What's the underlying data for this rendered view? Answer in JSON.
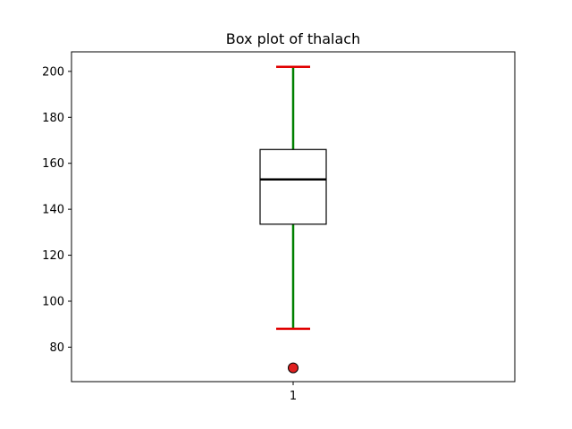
{
  "chart_data": {
    "type": "box",
    "title": "Box plot of thalach",
    "xlabel": "",
    "ylabel": "",
    "categories": [
      "1"
    ],
    "ylim": [
      65,
      208.5
    ],
    "yticks": [
      80,
      100,
      120,
      140,
      160,
      180,
      200
    ],
    "grid": false,
    "boxes": [
      {
        "category": "1",
        "whisker_low": 88,
        "q1": 133.5,
        "median": 153,
        "q3": 166,
        "whisker_high": 202,
        "outliers": [
          71
        ]
      }
    ],
    "colors": {
      "whisker": "#008000",
      "cap": "#e00000",
      "median": "#000000",
      "box_edge": "#000000",
      "box_fill": "#ffffff",
      "outlier_fill": "#e02020",
      "outlier_edge": "#000000"
    }
  }
}
